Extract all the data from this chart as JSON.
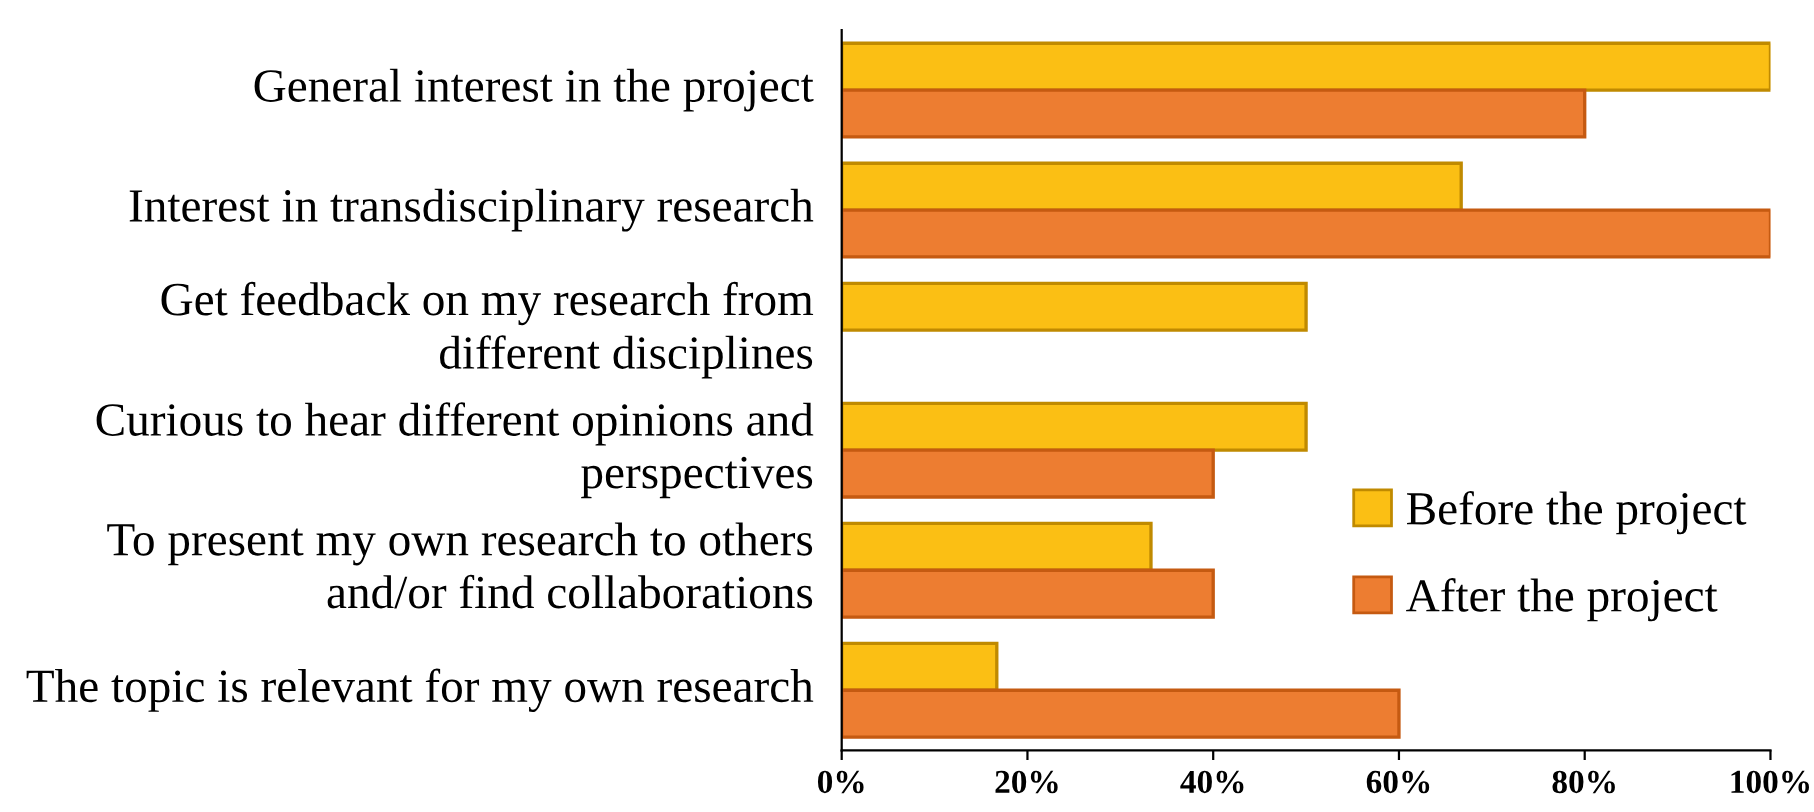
{
  "chart_data": {
    "type": "bar",
    "orientation": "horizontal",
    "categories": [
      "General interest in the project",
      "Interest in transdisciplinary research",
      "Get feedback on my research from different disciplines",
      "Curious to hear different opinions and perspectives",
      "To present my own research to others and/or find collaborations",
      "The topic is relevant for my own research"
    ],
    "series": [
      {
        "name": "Before the project",
        "color": "#fbbf14",
        "values": [
          100,
          66.7,
          50,
          50,
          33.3,
          16.7
        ]
      },
      {
        "name": "After the project",
        "color": "#ed7d31",
        "values": [
          80,
          100,
          null,
          40,
          40,
          60
        ]
      }
    ],
    "xlim": [
      0,
      100
    ],
    "xticks": [
      {
        "value": 0,
        "label": "0%"
      },
      {
        "value": 20,
        "label": "20%"
      },
      {
        "value": 40,
        "label": "40%"
      },
      {
        "value": 60,
        "label": "60%"
      },
      {
        "value": 80,
        "label": "80%"
      },
      {
        "value": 100,
        "label": "100%"
      }
    ],
    "grid": false,
    "legend": "bottom right"
  }
}
